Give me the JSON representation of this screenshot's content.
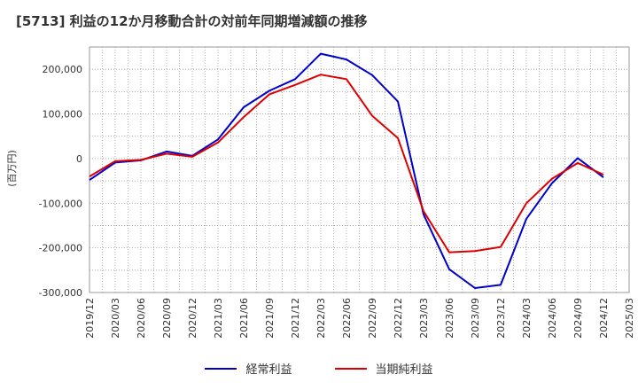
{
  "chart_data": {
    "type": "line",
    "title": "[5713]  利益の12か月移動合計の対前年同期増減額の推移",
    "ylabel": "(百万円)",
    "xlabel": "",
    "ylim": [
      -300000,
      250000
    ],
    "yticks": [
      200000,
      100000,
      0,
      -100000,
      -200000,
      -300000
    ],
    "ytick_labels": [
      "200,000",
      "100,000",
      "0",
      "-100,000",
      "-200,000",
      "-300,000"
    ],
    "categories": [
      "2019/12",
      "2020/03",
      "2020/06",
      "2020/09",
      "2020/12",
      "2021/03",
      "2021/06",
      "2021/09",
      "2021/12",
      "2022/03",
      "2022/06",
      "2022/09",
      "2022/12",
      "2023/03",
      "2023/06",
      "2023/09",
      "2023/12",
      "2024/03",
      "2024/06",
      "2024/09",
      "2024/12",
      "2025/03"
    ],
    "series": [
      {
        "name": "経常利益",
        "color": "#0000cc",
        "values": [
          -48000,
          -9000,
          -4000,
          16000,
          6000,
          43000,
          115000,
          152000,
          178000,
          235000,
          222000,
          187000,
          128000,
          -125000,
          -248000,
          -290000,
          -283000,
          -135000,
          -55000,
          1000,
          -42000,
          null
        ]
      },
      {
        "name": "当期純利益",
        "color": "#dd0000",
        "values": [
          -40000,
          -6000,
          -3000,
          11000,
          4000,
          36000,
          93000,
          144000,
          165000,
          188000,
          178000,
          96000,
          46000,
          -118000,
          -210000,
          -207000,
          -198000,
          -100000,
          -45000,
          -10000,
          -36000,
          null
        ]
      }
    ],
    "grid": true,
    "legend_position": "bottom-center"
  }
}
